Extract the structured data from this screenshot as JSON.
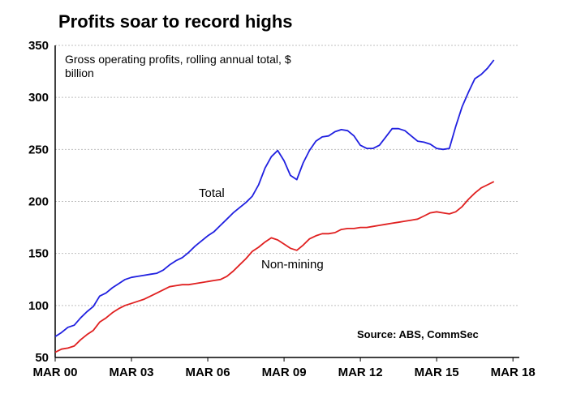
{
  "chart_data": {
    "type": "line",
    "title": "Profits soar to record highs",
    "subtitle_lines": [
      "Gross operating profits, rolling annual total, $",
      "billion"
    ],
    "source": "Source: ABS, CommSec",
    "ylim": [
      50,
      350
    ],
    "yticks": [
      50,
      100,
      150,
      200,
      250,
      300,
      350
    ],
    "xlim": [
      2000.0,
      2018.25
    ],
    "xticks": [
      {
        "label": "MAR 00",
        "value": 2000.0
      },
      {
        "label": "MAR 03",
        "value": 2003.0
      },
      {
        "label": "MAR 06",
        "value": 2006.0
      },
      {
        "label": "MAR 09",
        "value": 2009.0
      },
      {
        "label": "MAR 12",
        "value": 2012.0
      },
      {
        "label": "MAR 15",
        "value": 2015.0
      },
      {
        "label": "MAR 18",
        "value": 2018.0
      }
    ],
    "grid": true,
    "colors": {
      "total": "#2020e0",
      "non_mining": "#e02020",
      "grid": "#bfbfbf"
    },
    "series": [
      {
        "name": "Total",
        "points": [
          [
            2000.0,
            70
          ],
          [
            2000.25,
            74
          ],
          [
            2000.5,
            79
          ],
          [
            2000.75,
            81
          ],
          [
            2001.0,
            88
          ],
          [
            2001.25,
            94
          ],
          [
            2001.5,
            99
          ],
          [
            2001.75,
            109
          ],
          [
            2002.0,
            112
          ],
          [
            2002.25,
            117
          ],
          [
            2002.5,
            121
          ],
          [
            2002.75,
            125
          ],
          [
            2003.0,
            127
          ],
          [
            2003.25,
            128
          ],
          [
            2003.5,
            129
          ],
          [
            2003.75,
            130
          ],
          [
            2004.0,
            131
          ],
          [
            2004.25,
            134
          ],
          [
            2004.5,
            139
          ],
          [
            2004.75,
            143
          ],
          [
            2005.0,
            146
          ],
          [
            2005.25,
            151
          ],
          [
            2005.5,
            157
          ],
          [
            2005.75,
            162
          ],
          [
            2006.0,
            167
          ],
          [
            2006.25,
            171
          ],
          [
            2006.5,
            177
          ],
          [
            2006.75,
            183
          ],
          [
            2007.0,
            189
          ],
          [
            2007.25,
            194
          ],
          [
            2007.5,
            199
          ],
          [
            2007.75,
            205
          ],
          [
            2008.0,
            216
          ],
          [
            2008.25,
            232
          ],
          [
            2008.5,
            243
          ],
          [
            2008.75,
            249
          ],
          [
            2009.0,
            239
          ],
          [
            2009.25,
            225
          ],
          [
            2009.5,
            221
          ],
          [
            2009.75,
            237
          ],
          [
            2010.0,
            249
          ],
          [
            2010.25,
            258
          ],
          [
            2010.5,
            262
          ],
          [
            2010.75,
            263
          ],
          [
            2011.0,
            267
          ],
          [
            2011.25,
            269
          ],
          [
            2011.5,
            268
          ],
          [
            2011.75,
            263
          ],
          [
            2012.0,
            254
          ],
          [
            2012.25,
            251
          ],
          [
            2012.5,
            251
          ],
          [
            2012.75,
            254
          ],
          [
            2013.0,
            262
          ],
          [
            2013.25,
            270
          ],
          [
            2013.5,
            270
          ],
          [
            2013.75,
            268
          ],
          [
            2014.0,
            263
          ],
          [
            2014.25,
            258
          ],
          [
            2014.5,
            257
          ],
          [
            2014.75,
            255
          ],
          [
            2015.0,
            251
          ],
          [
            2015.25,
            250
          ],
          [
            2015.5,
            251
          ],
          [
            2015.75,
            272
          ],
          [
            2016.0,
            291
          ],
          [
            2016.25,
            305
          ],
          [
            2016.5,
            318
          ],
          [
            2016.75,
            322
          ],
          [
            2017.0,
            328
          ],
          [
            2017.25,
            336
          ]
        ]
      },
      {
        "name": "Non-mining",
        "points": [
          [
            2000.0,
            55
          ],
          [
            2000.25,
            58
          ],
          [
            2000.5,
            59
          ],
          [
            2000.75,
            61
          ],
          [
            2001.0,
            67
          ],
          [
            2001.25,
            72
          ],
          [
            2001.5,
            76
          ],
          [
            2001.75,
            84
          ],
          [
            2002.0,
            88
          ],
          [
            2002.25,
            93
          ],
          [
            2002.5,
            97
          ],
          [
            2002.75,
            100
          ],
          [
            2003.0,
            102
          ],
          [
            2003.25,
            104
          ],
          [
            2003.5,
            106
          ],
          [
            2003.75,
            109
          ],
          [
            2004.0,
            112
          ],
          [
            2004.25,
            115
          ],
          [
            2004.5,
            118
          ],
          [
            2004.75,
            119
          ],
          [
            2005.0,
            120
          ],
          [
            2005.25,
            120
          ],
          [
            2005.5,
            121
          ],
          [
            2005.75,
            122
          ],
          [
            2006.0,
            123
          ],
          [
            2006.25,
            124
          ],
          [
            2006.5,
            125
          ],
          [
            2006.75,
            128
          ],
          [
            2007.0,
            133
          ],
          [
            2007.25,
            139
          ],
          [
            2007.5,
            145
          ],
          [
            2007.75,
            152
          ],
          [
            2008.0,
            156
          ],
          [
            2008.25,
            161
          ],
          [
            2008.5,
            165
          ],
          [
            2008.75,
            163
          ],
          [
            2009.0,
            159
          ],
          [
            2009.25,
            155
          ],
          [
            2009.5,
            153
          ],
          [
            2009.75,
            158
          ],
          [
            2010.0,
            164
          ],
          [
            2010.25,
            167
          ],
          [
            2010.5,
            169
          ],
          [
            2010.75,
            169
          ],
          [
            2011.0,
            170
          ],
          [
            2011.25,
            173
          ],
          [
            2011.5,
            174
          ],
          [
            2011.75,
            174
          ],
          [
            2012.0,
            175
          ],
          [
            2012.25,
            175
          ],
          [
            2012.5,
            176
          ],
          [
            2012.75,
            177
          ],
          [
            2013.0,
            178
          ],
          [
            2013.25,
            179
          ],
          [
            2013.5,
            180
          ],
          [
            2013.75,
            181
          ],
          [
            2014.0,
            182
          ],
          [
            2014.25,
            183
          ],
          [
            2014.5,
            186
          ],
          [
            2014.75,
            189
          ],
          [
            2015.0,
            190
          ],
          [
            2015.25,
            189
          ],
          [
            2015.5,
            188
          ],
          [
            2015.75,
            190
          ],
          [
            2016.0,
            195
          ],
          [
            2016.25,
            202
          ],
          [
            2016.5,
            208
          ],
          [
            2016.75,
            213
          ],
          [
            2017.0,
            216
          ],
          [
            2017.25,
            219
          ]
        ]
      }
    ]
  }
}
